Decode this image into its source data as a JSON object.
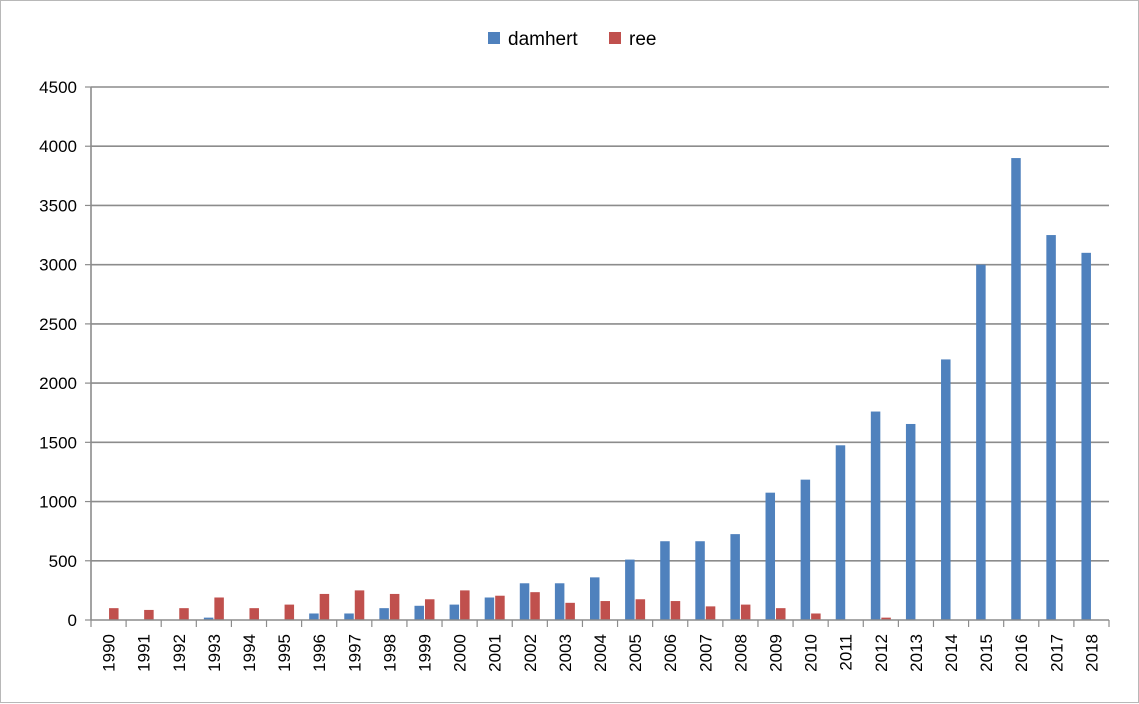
{
  "chart_data": {
    "type": "bar",
    "title": "",
    "xlabel": "",
    "ylabel": "",
    "ylim": [
      0,
      4500
    ],
    "yticks": [
      "0",
      "500",
      "1000",
      "1500",
      "2000",
      "2500",
      "3000",
      "3500",
      "4000",
      "4500"
    ],
    "grid": true,
    "legend_position": "top-center",
    "categories": [
      "1990",
      "1991",
      "1992",
      "1993",
      "1994",
      "1995",
      "1996",
      "1997",
      "1998",
      "1999",
      "2000",
      "2001",
      "2002",
      "2003",
      "2004",
      "2005",
      "2006",
      "2007",
      "2008",
      "2009",
      "2010",
      "2011",
      "2012",
      "2013",
      "2014",
      "2015",
      "2016",
      "2017",
      "2018"
    ],
    "series": [
      {
        "name": "damhert",
        "color": "#4F81BD",
        "values": [
          0,
          0,
          0,
          20,
          0,
          0,
          55,
          55,
          100,
          120,
          130,
          190,
          310,
          310,
          360,
          510,
          665,
          665,
          725,
          1075,
          1185,
          1475,
          1760,
          1655,
          2200,
          3000,
          3900,
          3250,
          3100
        ]
      },
      {
        "name": "ree",
        "color": "#C0504D",
        "values": [
          100,
          85,
          100,
          190,
          100,
          130,
          220,
          250,
          220,
          175,
          250,
          205,
          235,
          145,
          160,
          175,
          160,
          115,
          130,
          100,
          55,
          0,
          20,
          0,
          0,
          0,
          0,
          0,
          0
        ]
      }
    ]
  }
}
